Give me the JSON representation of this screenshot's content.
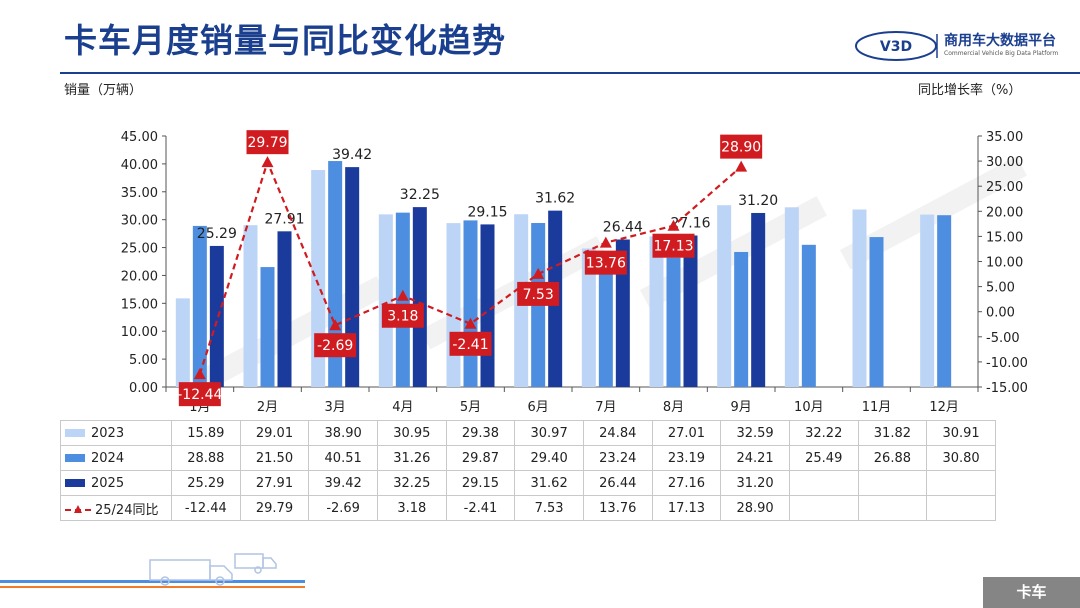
{
  "header": {
    "title": "卡车月度销量与同比变化趋势",
    "logo_name": "商用车大数据平台",
    "logo_subtitle": "Commercial Vehicle Big Data Platform",
    "logo_mark": "V3D"
  },
  "footer": {
    "tag": "卡车"
  },
  "colors": {
    "c2023": "#bcd4f5",
    "c2024": "#4e8ee0",
    "c2025": "#1a3a9c",
    "yoy": "#d01c20"
  },
  "chart_data": {
    "type": "bar",
    "ylabel": "销量（万辆）",
    "y2label": "同比增长率（%）",
    "categories": [
      "1月",
      "2月",
      "3月",
      "4月",
      "5月",
      "6月",
      "7月",
      "8月",
      "9月",
      "10月",
      "11月",
      "12月"
    ],
    "ylim": [
      0,
      45
    ],
    "yticks": [
      "0.00",
      "5.00",
      "10.00",
      "15.00",
      "20.00",
      "25.00",
      "30.00",
      "35.00",
      "40.00",
      "45.00"
    ],
    "y2lim": [
      -15,
      35
    ],
    "y2ticks": [
      "-15.00",
      "-10.00",
      "-5.00",
      "0.00",
      "5.00",
      "10.00",
      "15.00",
      "20.00",
      "25.00",
      "30.00",
      "35.00"
    ],
    "series": [
      {
        "name": "2023",
        "type": "bar",
        "values": [
          15.89,
          29.01,
          38.9,
          30.95,
          29.38,
          30.97,
          24.84,
          27.01,
          32.59,
          32.22,
          31.82,
          30.91
        ]
      },
      {
        "name": "2024",
        "type": "bar",
        "values": [
          28.88,
          21.5,
          40.51,
          31.26,
          29.87,
          29.4,
          23.24,
          23.19,
          24.21,
          25.49,
          26.88,
          30.8
        ]
      },
      {
        "name": "2025",
        "type": "bar",
        "values": [
          25.29,
          27.91,
          39.42,
          32.25,
          29.15,
          31.62,
          26.44,
          27.16,
          31.2,
          null,
          null,
          null
        ]
      },
      {
        "name": "25/24同比",
        "type": "line",
        "axis": "right",
        "values": [
          -12.44,
          29.79,
          -2.69,
          3.18,
          -2.41,
          7.53,
          13.76,
          17.13,
          28.9,
          null,
          null,
          null
        ]
      }
    ],
    "table_rows": [
      [
        "15.89",
        "29.01",
        "38.90",
        "30.95",
        "29.38",
        "30.97",
        "24.84",
        "27.01",
        "32.59",
        "32.22",
        "31.82",
        "30.91"
      ],
      [
        "28.88",
        "21.50",
        "40.51",
        "31.26",
        "29.87",
        "29.40",
        "23.24",
        "23.19",
        "24.21",
        "25.49",
        "26.88",
        "30.80"
      ],
      [
        "25.29",
        "27.91",
        "39.42",
        "32.25",
        "29.15",
        "31.62",
        "26.44",
        "27.16",
        "31.20",
        "",
        "",
        ""
      ],
      [
        "-12.44",
        "29.79",
        "-2.69",
        "3.18",
        "-2.41",
        "7.53",
        "13.76",
        "17.13",
        "28.90",
        "",
        "",
        ""
      ]
    ],
    "bar_labels_2025": [
      "25.29",
      "27.91",
      "39.42",
      "32.25",
      "29.15",
      "31.62",
      "26.44",
      "27.16",
      "31.20"
    ],
    "yoy_labels": [
      "-12.44",
      "29.79",
      "-2.69",
      "3.18",
      "-2.41",
      "7.53",
      "13.76",
      "17.13",
      "28.90"
    ],
    "grid": false,
    "legend": "table-left"
  }
}
